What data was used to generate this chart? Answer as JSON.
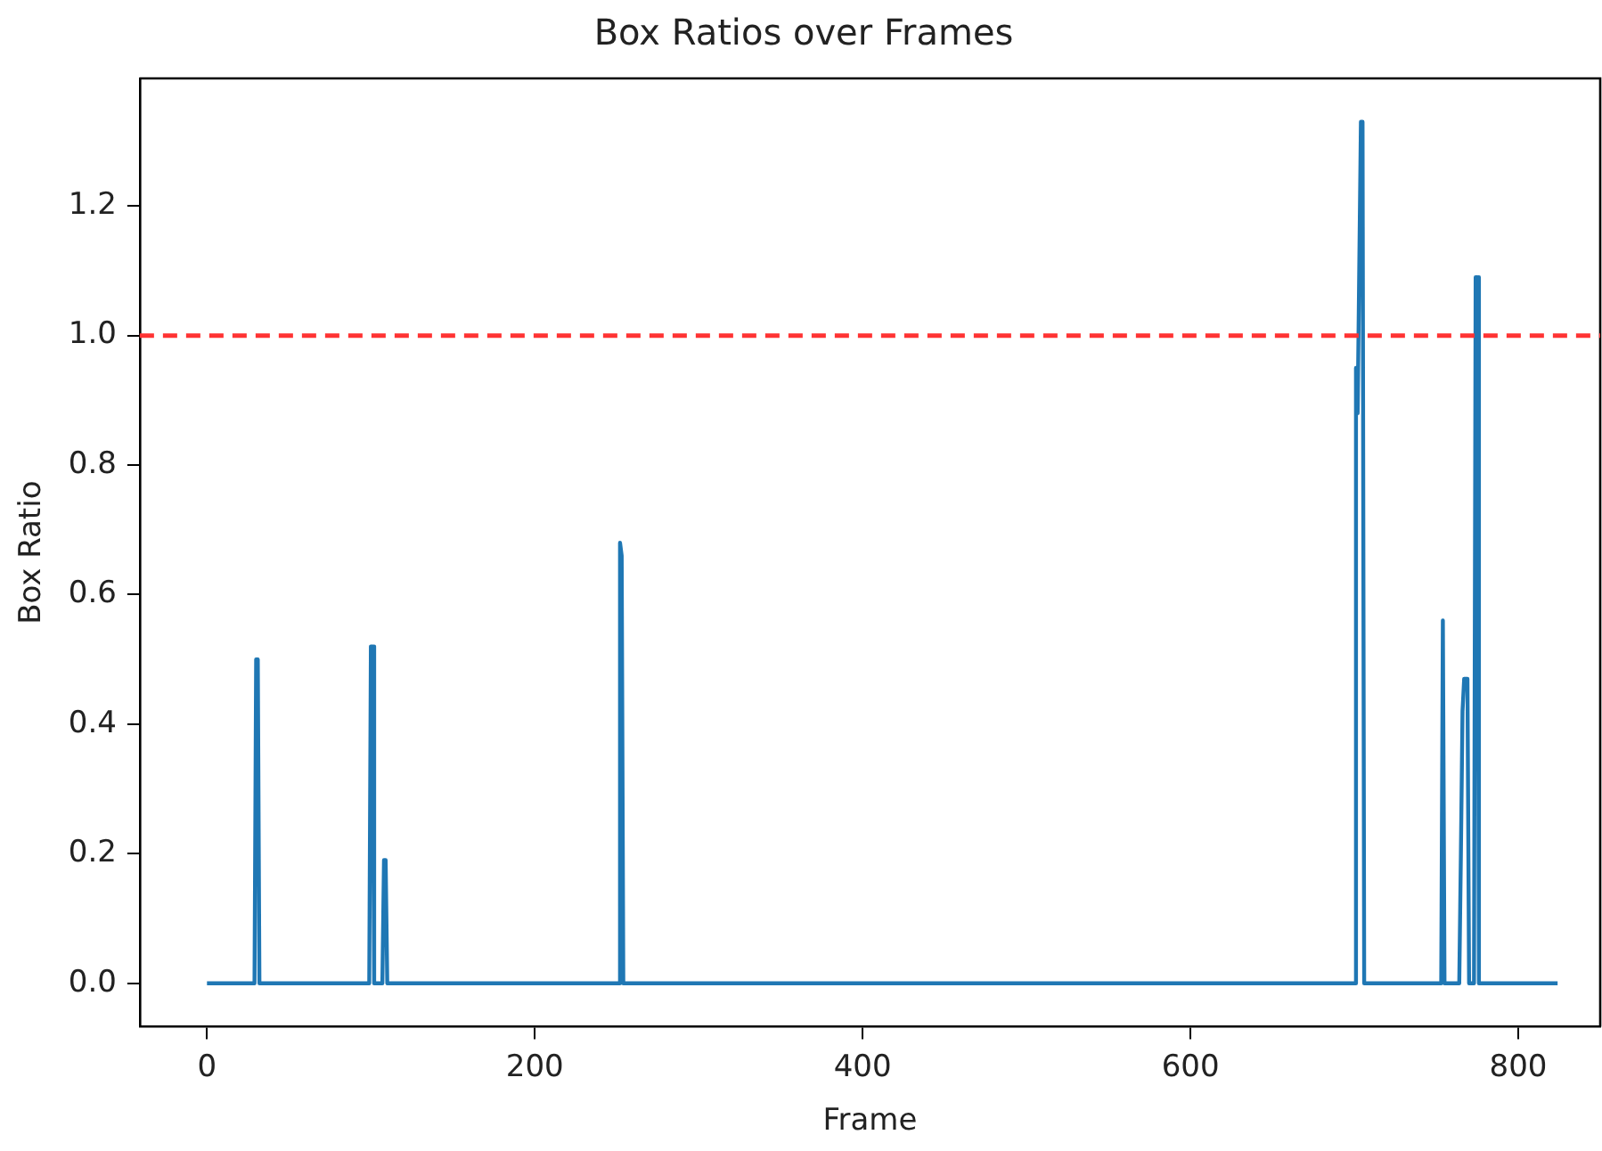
{
  "chart_data": {
    "type": "line",
    "title": "Box Ratios over Frames",
    "xlabel": "Frame",
    "ylabel": "Box Ratio",
    "x": [
      0,
      29,
      30,
      31,
      32,
      99,
      100,
      101,
      102,
      107,
      108,
      109,
      110,
      251,
      252,
      253,
      254,
      700,
      701,
      702,
      704,
      705,
      706,
      753,
      754,
      755,
      764,
      765,
      766,
      767,
      769,
      770,
      773,
      774,
      775,
      776,
      824
    ],
    "series": [
      {
        "color": "#1f77b4",
        "values": [
          0,
          0,
          0.5,
          0.5,
          0,
          0,
          0.52,
          0.52,
          0,
          0,
          0.19,
          0.19,
          0,
          0,
          0.68,
          0.66,
          0,
          0,
          0.95,
          0.88,
          1.33,
          1.33,
          0,
          0,
          0.56,
          0,
          0,
          0.2,
          0.42,
          0.47,
          0.47,
          0,
          0,
          1.09,
          1.09,
          0,
          0
        ]
      }
    ],
    "xlim": [
      -41,
      850
    ],
    "xticks": [
      0,
      200,
      400,
      600,
      800
    ],
    "ylim": [
      -0.067,
      1.397
    ],
    "yticks": [
      {
        "value": 0,
        "label": "0.0"
      },
      {
        "value": 0.2,
        "label": "0.2"
      },
      {
        "value": 0.4,
        "label": "0.4"
      },
      {
        "value": 0.6,
        "label": "0.6"
      },
      {
        "value": 0.8,
        "label": "0.8"
      },
      {
        "value": 1,
        "label": "1.0"
      },
      {
        "value": 1.2,
        "label": "1.2"
      }
    ],
    "ref_lines": [
      {
        "axis": "y",
        "value": 1,
        "color": "#ff3333",
        "line_style": "dashed"
      }
    ],
    "grid": false,
    "legend": false,
    "marker": "none",
    "line_style": "solid"
  }
}
